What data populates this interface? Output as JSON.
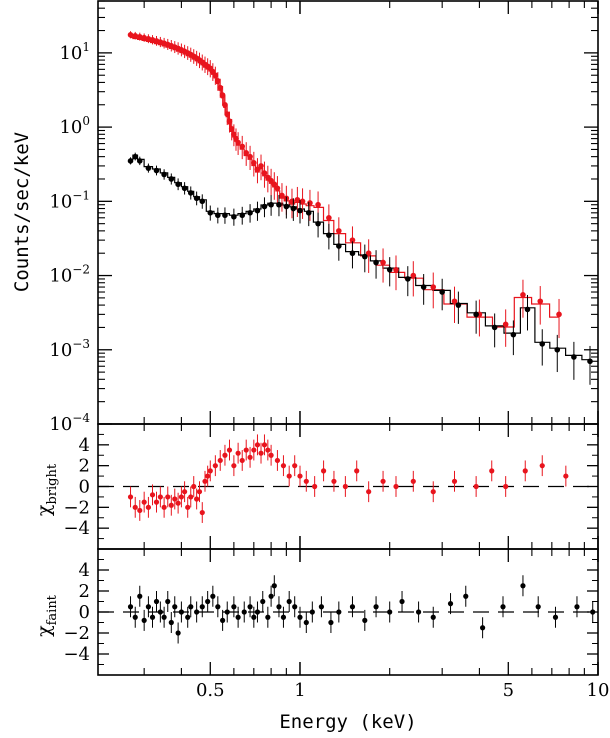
{
  "chart_data": [
    {
      "panel": "spectrum",
      "type": "scatter",
      "xlabel": "Energy (keV)",
      "ylabel": "Counts/sec/keV",
      "xscale": "log",
      "yscale": "log",
      "xlim": [
        0.21,
        10
      ],
      "ylim": [
        0.0001,
        50
      ],
      "x_ticks": [
        {
          "v": 0.5,
          "label": "0.5"
        },
        {
          "v": 1,
          "label": "1"
        },
        {
          "v": 5,
          "label": "5"
        },
        {
          "v": 10,
          "label": "10"
        }
      ],
      "y_ticks": [
        {
          "v": 10,
          "base": "10",
          "exp": "1"
        },
        {
          "v": 1,
          "base": "10",
          "exp": "0"
        },
        {
          "v": 0.1,
          "base": "10",
          "exp": "−1"
        },
        {
          "v": 0.01,
          "base": "10",
          "exp": "−2"
        },
        {
          "v": 0.001,
          "base": "10",
          "exp": "−3"
        },
        {
          "v": 0.0001,
          "base": "10",
          "exp": "−4"
        }
      ],
      "series": [
        {
          "color": "#e8141d",
          "points": [
            [
              0.27,
              17.5
            ],
            [
              0.28,
              17
            ],
            [
              0.29,
              16.5
            ],
            [
              0.3,
              16
            ],
            [
              0.31,
              15.5
            ],
            [
              0.32,
              15
            ],
            [
              0.33,
              14.5
            ],
            [
              0.34,
              14
            ],
            [
              0.35,
              13.5
            ],
            [
              0.36,
              13
            ],
            [
              0.37,
              12.5
            ],
            [
              0.38,
              12
            ],
            [
              0.39,
              11.5
            ],
            [
              0.4,
              11
            ],
            [
              0.41,
              10.5
            ],
            [
              0.42,
              10
            ],
            [
              0.43,
              9.5
            ],
            [
              0.44,
              9
            ],
            [
              0.45,
              8.5
            ],
            [
              0.46,
              8
            ],
            [
              0.47,
              7.5
            ],
            [
              0.48,
              7
            ],
            [
              0.49,
              6.6
            ],
            [
              0.5,
              6.2
            ],
            [
              0.51,
              5.6
            ],
            [
              0.52,
              5
            ],
            [
              0.53,
              4.2
            ],
            [
              0.54,
              3.4
            ],
            [
              0.55,
              2.7
            ],
            [
              0.56,
              2
            ],
            [
              0.57,
              1.5
            ],
            [
              0.58,
              1.2
            ],
            [
              0.59,
              0.95
            ],
            [
              0.6,
              0.8
            ],
            [
              0.61,
              0.7
            ],
            [
              0.62,
              0.62
            ],
            [
              0.64,
              0.55
            ],
            [
              0.66,
              0.45
            ],
            [
              0.68,
              0.4
            ],
            [
              0.7,
              0.33
            ],
            [
              0.72,
              0.27
            ],
            [
              0.74,
              0.3
            ],
            [
              0.76,
              0.24
            ],
            [
              0.78,
              0.21
            ],
            [
              0.8,
              0.19
            ],
            [
              0.82,
              0.17
            ],
            [
              0.84,
              0.15
            ],
            [
              0.87,
              0.12
            ],
            [
              0.9,
              0.11
            ],
            [
              0.94,
              0.1
            ],
            [
              0.98,
              0.105
            ],
            [
              1.02,
              0.1
            ],
            [
              1.08,
              0.095
            ],
            [
              1.15,
              0.09
            ],
            [
              1.25,
              0.06
            ],
            [
              1.35,
              0.04
            ],
            [
              1.5,
              0.03
            ],
            [
              1.7,
              0.02
            ],
            [
              1.9,
              0.015
            ],
            [
              2.1,
              0.012
            ],
            [
              2.4,
              0.01
            ],
            [
              2.8,
              0.007
            ],
            [
              3.3,
              0.0045
            ],
            [
              4.0,
              0.003
            ],
            [
              4.9,
              0.0022
            ],
            [
              5.6,
              0.0055
            ],
            [
              6.4,
              0.0045
            ],
            [
              7.4,
              0.003
            ]
          ]
        },
        {
          "color": "#000000",
          "points": [
            [
              0.27,
              0.35
            ],
            [
              0.28,
              0.4
            ],
            [
              0.29,
              0.35
            ],
            [
              0.31,
              0.28
            ],
            [
              0.33,
              0.26
            ],
            [
              0.35,
              0.23
            ],
            [
              0.37,
              0.2
            ],
            [
              0.39,
              0.17
            ],
            [
              0.41,
              0.15
            ],
            [
              0.43,
              0.13
            ],
            [
              0.45,
              0.11
            ],
            [
              0.47,
              0.1
            ],
            [
              0.5,
              0.07
            ],
            [
              0.53,
              0.065
            ],
            [
              0.56,
              0.065
            ],
            [
              0.6,
              0.062
            ],
            [
              0.64,
              0.065
            ],
            [
              0.68,
              0.07
            ],
            [
              0.72,
              0.075
            ],
            [
              0.76,
              0.085
            ],
            [
              0.8,
              0.09
            ],
            [
              0.85,
              0.09
            ],
            [
              0.9,
              0.085
            ],
            [
              0.95,
              0.08
            ],
            [
              1.0,
              0.075
            ],
            [
              1.07,
              0.07
            ],
            [
              1.15,
              0.05
            ],
            [
              1.25,
              0.035
            ],
            [
              1.35,
              0.025
            ],
            [
              1.5,
              0.02
            ],
            [
              1.65,
              0.018
            ],
            [
              1.8,
              0.015
            ],
            [
              2.0,
              0.012
            ],
            [
              2.3,
              0.009
            ],
            [
              2.6,
              0.007
            ],
            [
              3.0,
              0.006
            ],
            [
              3.4,
              0.004
            ],
            [
              3.9,
              0.003
            ],
            [
              4.5,
              0.002
            ],
            [
              5.2,
              0.0016
            ],
            [
              5.8,
              0.0035
            ],
            [
              6.5,
              0.0012
            ],
            [
              7.3,
              0.001
            ],
            [
              8.3,
              0.0008
            ],
            [
              9.4,
              0.0007
            ]
          ]
        }
      ]
    },
    {
      "panel": "residuals-bright",
      "type": "scatter",
      "ylabel_main": "χ",
      "ylabel_sub": "bright",
      "ylim": [
        -6,
        6
      ],
      "y_ticks": [
        "4",
        "2",
        "0",
        "−2",
        "−4"
      ],
      "color": "#e8141d",
      "points": [
        [
          0.27,
          -1
        ],
        [
          0.28,
          -2
        ],
        [
          0.29,
          -2.3
        ],
        [
          0.3,
          -1.5
        ],
        [
          0.31,
          -2
        ],
        [
          0.32,
          -0.8
        ],
        [
          0.33,
          -1.5
        ],
        [
          0.34,
          -1
        ],
        [
          0.35,
          -2
        ],
        [
          0.36,
          -1
        ],
        [
          0.37,
          -1.8
        ],
        [
          0.38,
          -1.2
        ],
        [
          0.39,
          -1.6
        ],
        [
          0.4,
          -1
        ],
        [
          0.41,
          -0.5
        ],
        [
          0.42,
          -2
        ],
        [
          0.43,
          -1
        ],
        [
          0.44,
          0
        ],
        [
          0.45,
          -1.2
        ],
        [
          0.46,
          -0.5
        ],
        [
          0.47,
          -2.5
        ],
        [
          0.48,
          0.5
        ],
        [
          0.49,
          1
        ],
        [
          0.5,
          1.5
        ],
        [
          0.52,
          2
        ],
        [
          0.54,
          2.5
        ],
        [
          0.56,
          3
        ],
        [
          0.58,
          3.5
        ],
        [
          0.6,
          2
        ],
        [
          0.62,
          3.2
        ],
        [
          0.64,
          2.5
        ],
        [
          0.66,
          3.5
        ],
        [
          0.68,
          2.8
        ],
        [
          0.7,
          3.5
        ],
        [
          0.72,
          4
        ],
        [
          0.74,
          3.2
        ],
        [
          0.76,
          4
        ],
        [
          0.78,
          3.5
        ],
        [
          0.8,
          3
        ],
        [
          0.84,
          2.5
        ],
        [
          0.88,
          2
        ],
        [
          0.92,
          1
        ],
        [
          0.96,
          2
        ],
        [
          1.0,
          1
        ],
        [
          1.05,
          0.5
        ],
        [
          1.12,
          0
        ],
        [
          1.2,
          1.5
        ],
        [
          1.3,
          0.5
        ],
        [
          1.42,
          0
        ],
        [
          1.55,
          1.5
        ],
        [
          1.7,
          -0.5
        ],
        [
          1.9,
          0.5
        ],
        [
          2.1,
          0
        ],
        [
          2.4,
          0.5
        ],
        [
          2.8,
          -0.5
        ],
        [
          3.3,
          0.5
        ],
        [
          3.9,
          0
        ],
        [
          4.4,
          1.5
        ],
        [
          4.9,
          0
        ],
        [
          5.7,
          1.5
        ],
        [
          6.5,
          2
        ],
        [
          7.8,
          1
        ]
      ]
    },
    {
      "panel": "residuals-faint",
      "type": "scatter",
      "ylabel_main": "χ",
      "ylabel_sub": "faint",
      "ylim": [
        -6,
        6
      ],
      "y_ticks": [
        "4",
        "2",
        "0",
        "−2",
        "−4"
      ],
      "color": "#000000",
      "points": [
        [
          0.27,
          0.5
        ],
        [
          0.28,
          -0.5
        ],
        [
          0.29,
          1.5
        ],
        [
          0.3,
          -0.8
        ],
        [
          0.31,
          0.5
        ],
        [
          0.32,
          -0.5
        ],
        [
          0.33,
          1
        ],
        [
          0.34,
          0
        ],
        [
          0.35,
          -0.5
        ],
        [
          0.36,
          1
        ],
        [
          0.37,
          -1
        ],
        [
          0.38,
          0.5
        ],
        [
          0.39,
          -2
        ],
        [
          0.4,
          0
        ],
        [
          0.42,
          -0.5
        ],
        [
          0.43,
          0.5
        ],
        [
          0.45,
          0
        ],
        [
          0.47,
          0.5
        ],
        [
          0.49,
          1
        ],
        [
          0.51,
          1.5
        ],
        [
          0.53,
          0.5
        ],
        [
          0.55,
          -0.8
        ],
        [
          0.57,
          0
        ],
        [
          0.6,
          0.5
        ],
        [
          0.62,
          -0.5
        ],
        [
          0.65,
          0
        ],
        [
          0.68,
          0.5
        ],
        [
          0.7,
          -0.5
        ],
        [
          0.72,
          0
        ],
        [
          0.75,
          1
        ],
        [
          0.78,
          -0.5
        ],
        [
          0.8,
          1.5
        ],
        [
          0.82,
          2.5
        ],
        [
          0.85,
          0.5
        ],
        [
          0.88,
          -0.5
        ],
        [
          0.92,
          1
        ],
        [
          0.96,
          0.5
        ],
        [
          1.0,
          -0.5
        ],
        [
          1.05,
          -1
        ],
        [
          1.1,
          0
        ],
        [
          1.18,
          0.5
        ],
        [
          1.27,
          -1
        ],
        [
          1.35,
          0
        ],
        [
          1.5,
          0.5
        ],
        [
          1.65,
          -0.8
        ],
        [
          1.8,
          0.5
        ],
        [
          2.0,
          0
        ],
        [
          2.2,
          1
        ],
        [
          2.5,
          0
        ],
        [
          2.8,
          -0.5
        ],
        [
          3.2,
          0.8
        ],
        [
          3.6,
          1.5
        ],
        [
          4.1,
          -1.5
        ],
        [
          4.8,
          0.5
        ],
        [
          5.6,
          2.5
        ],
        [
          6.3,
          0.5
        ],
        [
          7.2,
          -0.5
        ],
        [
          8.5,
          0.5
        ],
        [
          9.6,
          0
        ]
      ]
    }
  ]
}
